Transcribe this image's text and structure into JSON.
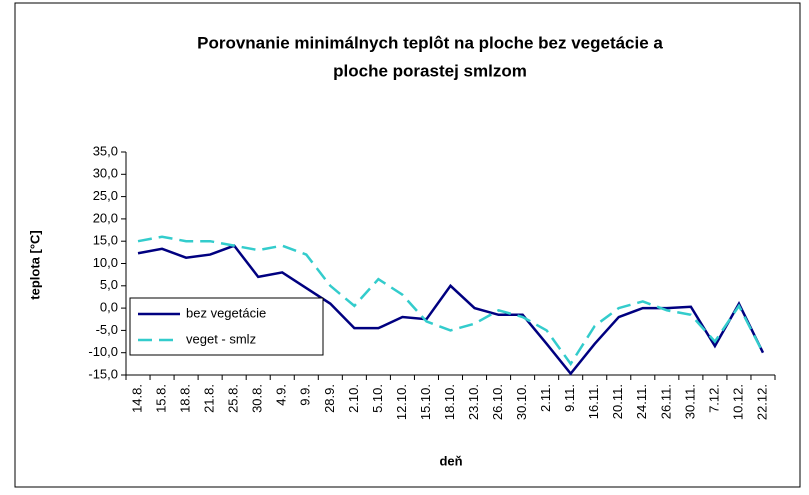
{
  "chart_data": {
    "type": "line",
    "title": [
      "Porovnanie minimálnych teplôt na ploche bez vegetácie a",
      "ploche porastej smlzom"
    ],
    "y_label": "teplota [°C]",
    "x_label": "deň",
    "categories": [
      "14.8.",
      "15.8.",
      "18.8.",
      "21.8.",
      "25.8.",
      "30.8.",
      "4.9.",
      "9.9.",
      "28.9.",
      "2.10.",
      "5.10.",
      "12.10.",
      "15.10.",
      "18.10.",
      "23.10.",
      "26.10.",
      "30.10.",
      "2.11.",
      "9.11.",
      "16.11.",
      "20.11.",
      "24.11.",
      "26.11.",
      "30.11.",
      "7.12.",
      "10.12.",
      "22.12."
    ],
    "series": [
      {
        "name": "bez vegetácie",
        "color": "#000080",
        "dash": false,
        "values": [
          12.3,
          13.3,
          11.3,
          12,
          14,
          7,
          8,
          4.5,
          1,
          -4.5,
          -4.5,
          -2,
          -2.5,
          5,
          0,
          -1.5,
          -1.5,
          -8,
          -14.7,
          -8,
          -2,
          0,
          0,
          0.3,
          -8.5,
          1,
          -10
        ]
      },
      {
        "name": "veget - smlz",
        "color": "#33cccc",
        "dash": true,
        "values": [
          15,
          16,
          15,
          15,
          14,
          13,
          14,
          12,
          5,
          0.5,
          6.5,
          3,
          -3,
          -5,
          -3.5,
          -0.5,
          -2,
          -5,
          -12.5,
          -4,
          0,
          1.5,
          -0.5,
          -1.5,
          -7.5,
          0.5,
          -10
        ]
      }
    ],
    "ylim": [
      -15,
      35
    ],
    "yticks": [
      {
        "value": -15,
        "label": "-15,0"
      },
      {
        "value": -10,
        "label": "-10,0"
      },
      {
        "value": -5,
        "label": "-5,0"
      },
      {
        "value": 0,
        "label": "0,0"
      },
      {
        "value": 5,
        "label": "5,0"
      },
      {
        "value": 10,
        "label": "10,0"
      },
      {
        "value": 15,
        "label": "15,0"
      },
      {
        "value": 20,
        "label": "20,0"
      },
      {
        "value": 25,
        "label": "25,0"
      },
      {
        "value": 30,
        "label": "30,0"
      },
      {
        "value": 35,
        "label": "35,0"
      }
    ],
    "grid": false,
    "legend": "lower left"
  }
}
